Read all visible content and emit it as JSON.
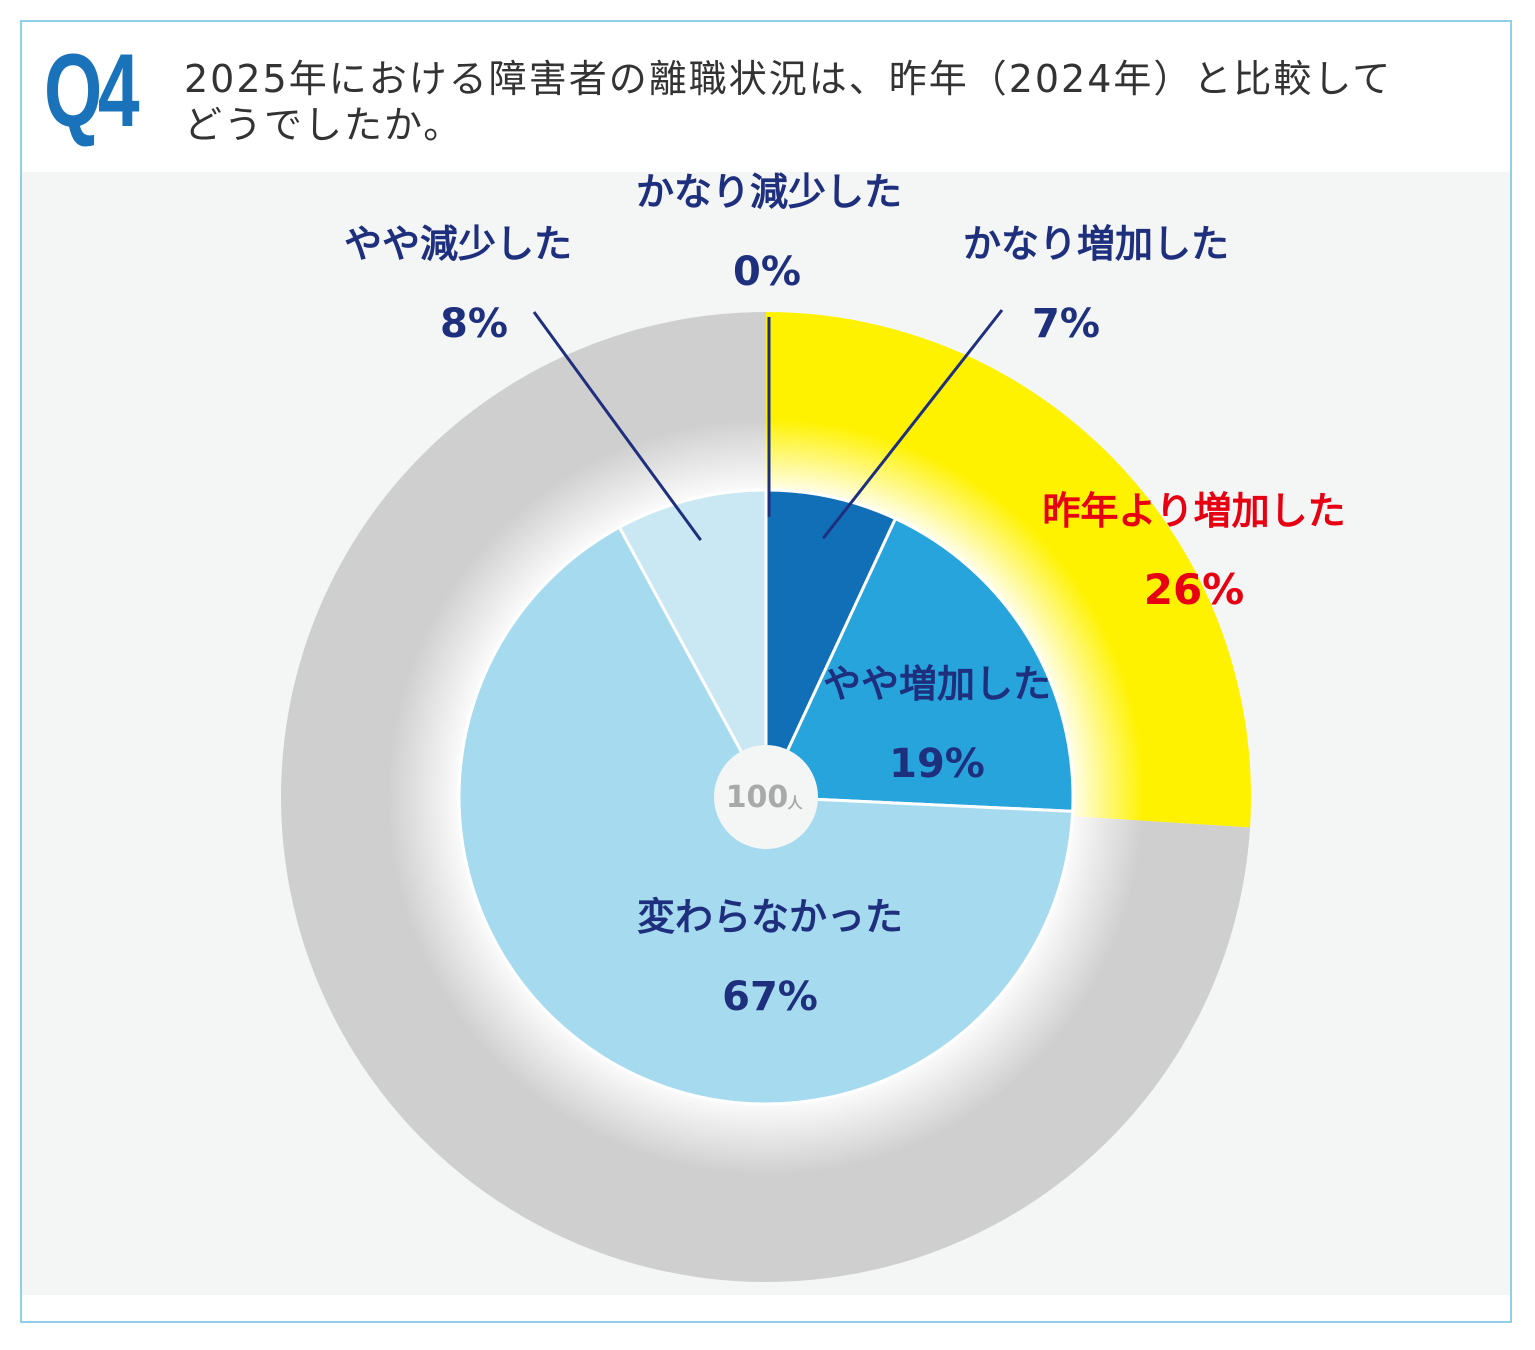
{
  "header": {
    "q_label": "Q4",
    "question": "2025年における障害者の離職状況は、昨年（2024年）と比較して\nどうでしたか。"
  },
  "center_label": {
    "value": "100",
    "unit": "人"
  },
  "colors": {
    "outer_increase": "#fff200",
    "outer_rest": "#cfcfcf",
    "much_increase": "#116fb8",
    "slight_increase": "#27a4dc",
    "unchanged": "#a6daee",
    "slight_decrease": "#c9e8f3",
    "label_navy": "#1e2f7e",
    "label_red": "#e60012",
    "frame": "#8fd0e6"
  },
  "chart_data": [
    {
      "type": "pie",
      "ring": "inner",
      "categories": [
        "かなり増加した",
        "やや増加した",
        "変わらなかった",
        "やや減少した",
        "かなり減少した"
      ],
      "values": [
        7,
        19,
        67,
        8,
        0
      ],
      "value_labels": [
        "7%",
        "19%",
        "67%",
        "8%",
        "0%"
      ],
      "total_label": "100人"
    },
    {
      "type": "pie",
      "ring": "outer",
      "categories": [
        "昨年より増加した",
        ""
      ],
      "values": [
        26,
        74
      ],
      "value_labels": [
        "26%",
        ""
      ]
    }
  ]
}
